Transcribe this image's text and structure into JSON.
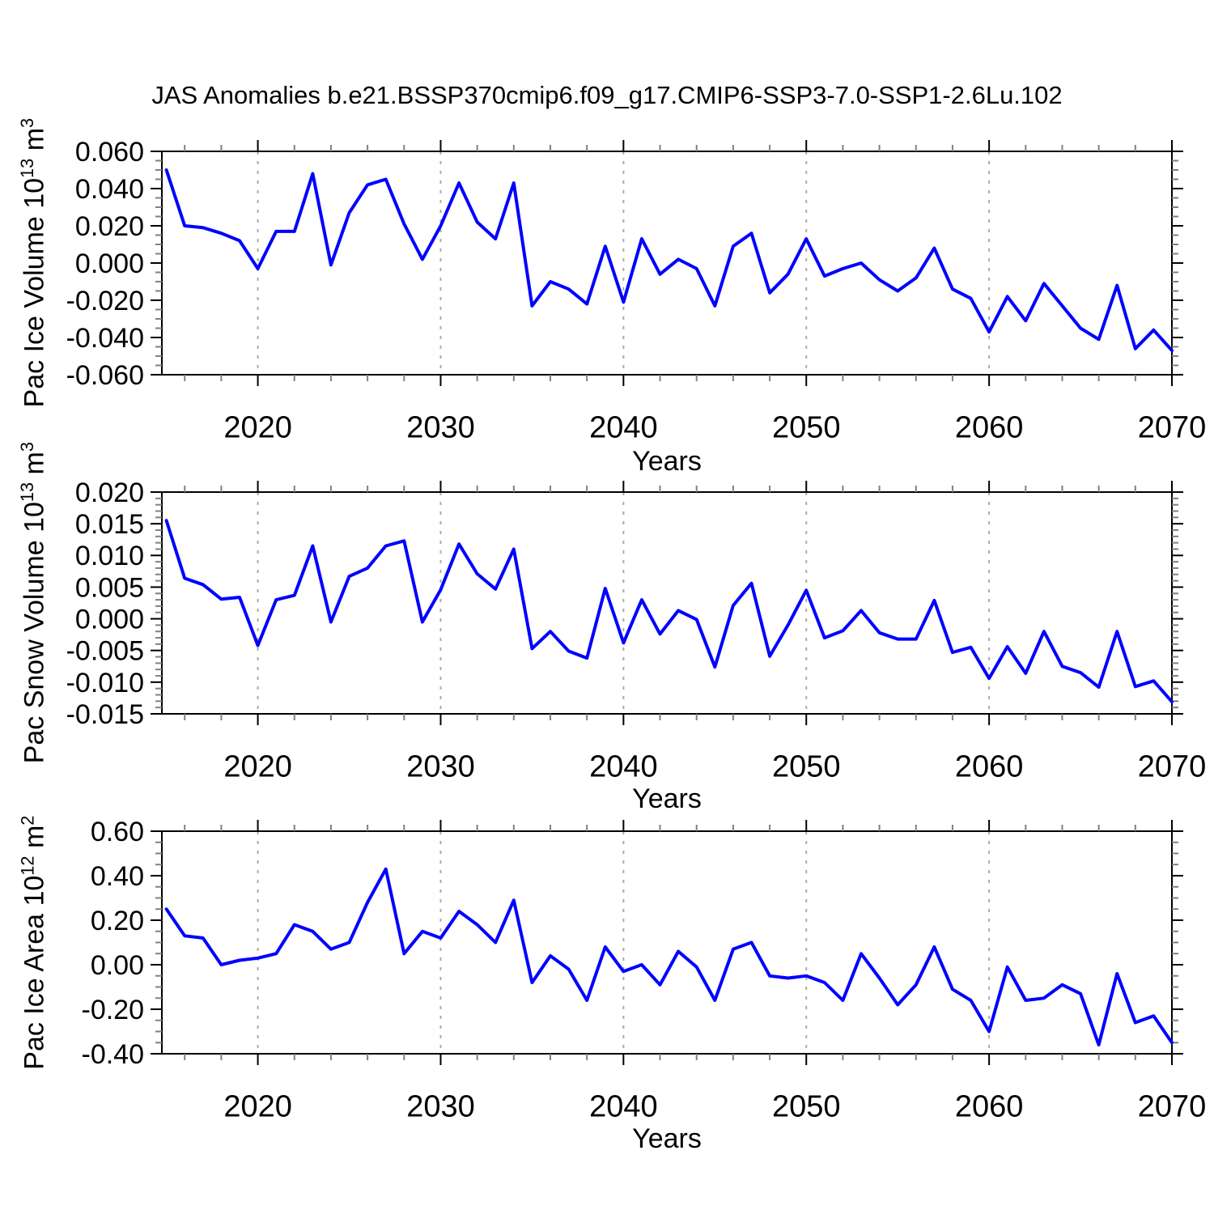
{
  "title": "JAS Anomalies b.e21.BSSP370cmip6.f09_g17.CMIP6-SSP3-7.0-SSP1-2.6Lu.102",
  "xlabel": "Years",
  "colors": {
    "line": "#0000ff",
    "grid": "#aaaaaa",
    "frame": "#000000",
    "major_tick": "#000000",
    "minor_tick": "#808080"
  },
  "x_axis": {
    "tick_labels": [
      "2020",
      "2030",
      "2040",
      "2050",
      "2060",
      "2070"
    ],
    "tick_years": [
      2020,
      2030,
      2040,
      2050,
      2060,
      2070
    ],
    "minor_step_years": 2,
    "grid_years": [
      2020,
      2030,
      2040,
      2050,
      2060
    ],
    "range": [
      2014.75,
      2070
    ]
  },
  "chart_data": [
    {
      "type": "line",
      "name": "pac-ice-volume",
      "ylabel_parts": [
        {
          "t": "Pac Ice Volume 10"
        },
        {
          "t": "13",
          "sup": true
        },
        {
          "t": " m"
        },
        {
          "t": "3",
          "sup": true
        }
      ],
      "ylim": [
        -0.06,
        0.06
      ],
      "ytick_values": [
        0.06,
        0.04,
        0.02,
        0.0,
        -0.02,
        -0.04,
        -0.06
      ],
      "ytick_labels": [
        "0.060",
        "0.040",
        "0.020",
        "0.000",
        "-0.020",
        "-0.040",
        "-0.060"
      ],
      "y_minor_step": 0.005,
      "x_years": [
        2015,
        2016,
        2017,
        2018,
        2019,
        2020,
        2021,
        2022,
        2023,
        2024,
        2025,
        2026,
        2027,
        2028,
        2029,
        2030,
        2031,
        2032,
        2033,
        2034,
        2035,
        2036,
        2037,
        2038,
        2039,
        2040,
        2041,
        2042,
        2043,
        2044,
        2045,
        2046,
        2047,
        2048,
        2049,
        2050,
        2051,
        2052,
        2053,
        2054,
        2055,
        2056,
        2057,
        2058,
        2059,
        2060,
        2061,
        2062,
        2063,
        2064,
        2065,
        2066,
        2067,
        2068,
        2069,
        2070
      ],
      "values": [
        0.05,
        0.02,
        0.019,
        0.016,
        0.012,
        -0.003,
        0.017,
        0.017,
        0.048,
        -0.001,
        0.027,
        0.042,
        0.045,
        0.021,
        0.002,
        0.02,
        0.043,
        0.022,
        0.013,
        0.043,
        -0.023,
        -0.01,
        -0.014,
        -0.022,
        0.009,
        -0.021,
        0.013,
        -0.006,
        0.002,
        -0.003,
        -0.023,
        0.009,
        0.016,
        -0.016,
        -0.006,
        0.013,
        -0.007,
        -0.003,
        0.0,
        -0.009,
        -0.015,
        -0.008,
        0.008,
        -0.014,
        -0.019,
        -0.037,
        -0.018,
        -0.031,
        -0.011,
        -0.023,
        -0.035,
        -0.041,
        -0.012,
        -0.046,
        -0.036,
        -0.047
      ]
    },
    {
      "type": "line",
      "name": "pac-snow-volume",
      "ylabel_parts": [
        {
          "t": "Pac Snow Volume 10"
        },
        {
          "t": "13",
          "sup": true
        },
        {
          "t": " m"
        },
        {
          "t": "3",
          "sup": true
        }
      ],
      "ylim": [
        -0.015,
        0.02
      ],
      "ytick_values": [
        0.02,
        0.015,
        0.01,
        0.005,
        0.0,
        -0.005,
        -0.01,
        -0.015
      ],
      "ytick_labels": [
        "0.020",
        "0.015",
        "0.010",
        "0.005",
        "0.000",
        "-0.005",
        "-0.010",
        "-0.015"
      ],
      "y_minor_step": 0.001,
      "x_years": [
        2015,
        2016,
        2017,
        2018,
        2019,
        2020,
        2021,
        2022,
        2023,
        2024,
        2025,
        2026,
        2027,
        2028,
        2029,
        2030,
        2031,
        2032,
        2033,
        2034,
        2035,
        2036,
        2037,
        2038,
        2039,
        2040,
        2041,
        2042,
        2043,
        2044,
        2045,
        2046,
        2047,
        2048,
        2049,
        2050,
        2051,
        2052,
        2053,
        2054,
        2055,
        2056,
        2057,
        2058,
        2059,
        2060,
        2061,
        2062,
        2063,
        2064,
        2065,
        2066,
        2067,
        2068,
        2069,
        2070
      ],
      "values": [
        0.0155,
        0.0064,
        0.0054,
        0.0031,
        0.0034,
        -0.0042,
        0.003,
        0.0037,
        0.0115,
        -0.0005,
        0.0067,
        0.008,
        0.0115,
        0.0123,
        -0.0005,
        0.0046,
        0.0118,
        0.0071,
        0.0047,
        0.011,
        -0.0047,
        -0.002,
        -0.0051,
        -0.0062,
        0.0048,
        -0.0038,
        0.003,
        -0.0024,
        0.0013,
        -0.0001,
        -0.0076,
        0.0021,
        0.0056,
        -0.0059,
        -0.001,
        0.0045,
        -0.003,
        -0.0019,
        0.0013,
        -0.0022,
        -0.0032,
        -0.0032,
        0.0029,
        -0.0053,
        -0.0045,
        -0.0094,
        -0.0044,
        -0.0086,
        -0.002,
        -0.0075,
        -0.0085,
        -0.0108,
        -0.002,
        -0.0107,
        -0.0098,
        -0.0131
      ]
    },
    {
      "type": "line",
      "name": "pac-ice-area",
      "ylabel_parts": [
        {
          "t": "Pac Ice Area 10"
        },
        {
          "t": "12",
          "sup": true
        },
        {
          "t": " m"
        },
        {
          "t": "2",
          "sup": true
        }
      ],
      "ylim": [
        -0.4,
        0.6
      ],
      "ytick_values": [
        0.6,
        0.4,
        0.2,
        0.0,
        -0.2,
        -0.4
      ],
      "ytick_labels": [
        "0.60",
        "0.40",
        "0.20",
        "0.00",
        "-0.20",
        "-0.40"
      ],
      "y_minor_step": 0.05,
      "x_years": [
        2015,
        2016,
        2017,
        2018,
        2019,
        2020,
        2021,
        2022,
        2023,
        2024,
        2025,
        2026,
        2027,
        2028,
        2029,
        2030,
        2031,
        2032,
        2033,
        2034,
        2035,
        2036,
        2037,
        2038,
        2039,
        2040,
        2041,
        2042,
        2043,
        2044,
        2045,
        2046,
        2047,
        2048,
        2049,
        2050,
        2051,
        2052,
        2053,
        2054,
        2055,
        2056,
        2057,
        2058,
        2059,
        2060,
        2061,
        2062,
        2063,
        2064,
        2065,
        2066,
        2067,
        2068,
        2069,
        2070
      ],
      "values": [
        0.25,
        0.13,
        0.12,
        0.0,
        0.02,
        0.03,
        0.05,
        0.18,
        0.15,
        0.07,
        0.1,
        0.28,
        0.43,
        0.05,
        0.15,
        0.12,
        0.24,
        0.18,
        0.1,
        0.29,
        -0.08,
        0.04,
        -0.02,
        -0.16,
        0.08,
        -0.03,
        0.0,
        -0.09,
        0.06,
        -0.01,
        -0.16,
        0.07,
        0.1,
        -0.05,
        -0.06,
        -0.05,
        -0.08,
        -0.16,
        0.05,
        -0.06,
        -0.18,
        -0.09,
        0.08,
        -0.11,
        -0.16,
        -0.3,
        -0.01,
        -0.16,
        -0.15,
        -0.09,
        -0.13,
        -0.36,
        -0.04,
        -0.26,
        -0.23,
        -0.35
      ]
    }
  ]
}
